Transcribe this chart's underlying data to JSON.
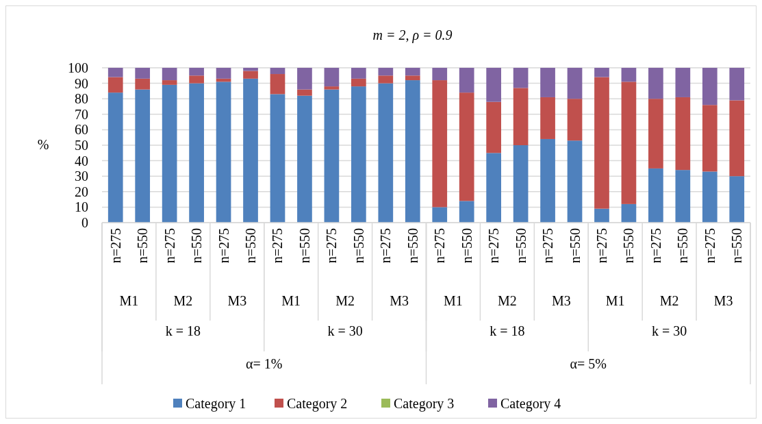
{
  "chart_data": {
    "type": "bar",
    "title": "m = 2, ρ = 0.9",
    "ylabel": "%",
    "stacked": true,
    "categories": [
      "n=275",
      "n=550",
      "n=275",
      "n=550",
      "n=275",
      "n=550",
      "n=275",
      "n=550",
      "n=275",
      "n=550",
      "n=275",
      "n=550",
      "n=275",
      "n=550",
      "n=275",
      "n=550",
      "n=275",
      "n=550",
      "n=275",
      "n=550",
      "n=275",
      "n=550",
      "n=275",
      "n=550"
    ],
    "series": [
      {
        "name": "Category 1",
        "color": "#4f81bd",
        "values": [
          84,
          86,
          89,
          90,
          91,
          93,
          83,
          82,
          86,
          88,
          90,
          92,
          10,
          14,
          45,
          50,
          54,
          53,
          9,
          12,
          35,
          34,
          33,
          30
        ]
      },
      {
        "name": "Category 2",
        "color": "#c0504d",
        "values": [
          10,
          7,
          3,
          5,
          2,
          5,
          13,
          4,
          2,
          5,
          5,
          3,
          82,
          70,
          33,
          37,
          27,
          27,
          85,
          79,
          45,
          47,
          43,
          49
        ]
      },
      {
        "name": "Category 3",
        "color": "#9bbb59",
        "values": [
          0,
          0,
          0,
          0,
          0,
          0,
          0,
          0,
          0,
          0,
          0,
          0,
          0,
          0,
          0,
          0,
          0,
          0,
          0,
          0,
          0,
          0,
          0,
          0
        ]
      },
      {
        "name": "Category 4",
        "color": "#8064a2",
        "values": [
          6,
          7,
          8,
          5,
          7,
          2,
          4,
          14,
          12,
          7,
          5,
          5,
          8,
          16,
          22,
          13,
          19,
          20,
          6,
          9,
          20,
          19,
          24,
          21
        ]
      }
    ],
    "ylim": [
      0,
      100
    ],
    "yticks": [
      0,
      10,
      20,
      30,
      40,
      50,
      60,
      70,
      80,
      90,
      100
    ],
    "grid": "y",
    "legend": "bottom",
    "annotations": [
      "M1",
      "M2",
      "M3",
      "M1",
      "M2",
      "M3",
      "M1",
      "M2",
      "M3",
      "M1",
      "M2",
      "M3",
      "k = 18",
      "k = 30",
      "k = 18",
      "k = 30",
      "α= 1%",
      "α= 5%"
    ]
  }
}
